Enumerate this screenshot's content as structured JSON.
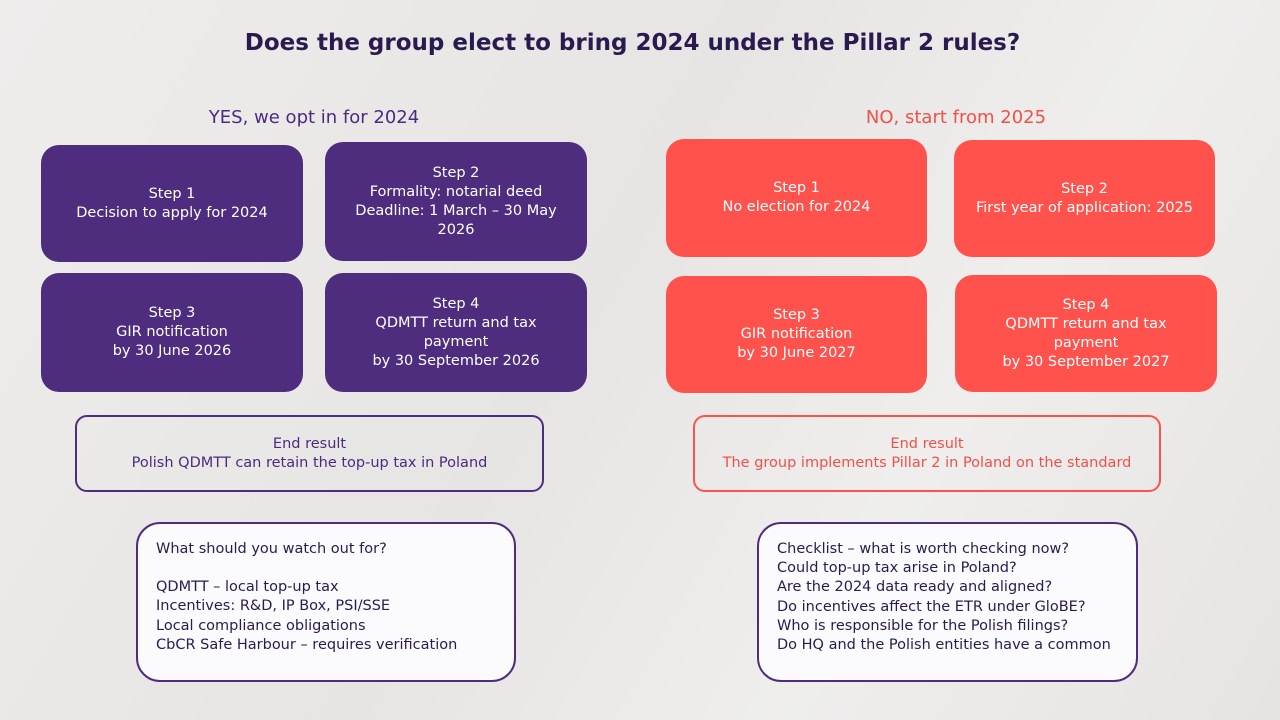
{
  "title": "Does the group elect to bring 2024 under the Pillar 2 rules?",
  "yes": {
    "heading": "YES, we opt in for 2024",
    "steps": [
      {
        "lines": [
          "Step 1",
          "Decision to apply for 2024"
        ]
      },
      {
        "lines": [
          "Step 2",
          "Formality: notarial deed",
          "Deadline: 1 March – 30 May",
          "2026"
        ]
      },
      {
        "lines": [
          "Step 3",
          "GIR notification",
          "by 30 June 2026"
        ]
      },
      {
        "lines": [
          "Step 4",
          "QDMTT return and tax",
          "payment",
          "by 30 September 2026"
        ]
      }
    ],
    "end_result": {
      "label": "End result",
      "text": "Polish QDMTT can retain the top-up tax in Poland"
    },
    "notes": {
      "heading": "What should you watch out for?",
      "items": [
        "QDMTT – local top-up tax",
        "Incentives: R&D, IP Box, PSI/SSE",
        "Local compliance obligations",
        "CbCR Safe Harbour – requires verification"
      ]
    }
  },
  "no": {
    "heading": "NO, start from 2025",
    "steps": [
      {
        "lines": [
          "Step 1",
          "No election for 2024"
        ]
      },
      {
        "lines": [
          "Step 2",
          "First year of application: 2025"
        ]
      },
      {
        "lines": [
          "Step 3",
          "GIR notification",
          "by 30 June 2027"
        ]
      },
      {
        "lines": [
          "Step 4",
          "QDMTT return and tax",
          "payment",
          "by 30 September 2027"
        ]
      }
    ],
    "end_result": {
      "label": "End result",
      "text": "The group implements Pillar 2 in Poland on the standard"
    },
    "notes": {
      "heading": "Checklist – what is worth checking now?",
      "items": [
        "Could top-up tax arise in Poland?",
        "Are the 2024 data ready and aligned?",
        "Do incentives affect the ETR under GloBE?",
        "Who is responsible for the Polish filings?",
        "Do HQ and the Polish entities have a common"
      ]
    }
  }
}
